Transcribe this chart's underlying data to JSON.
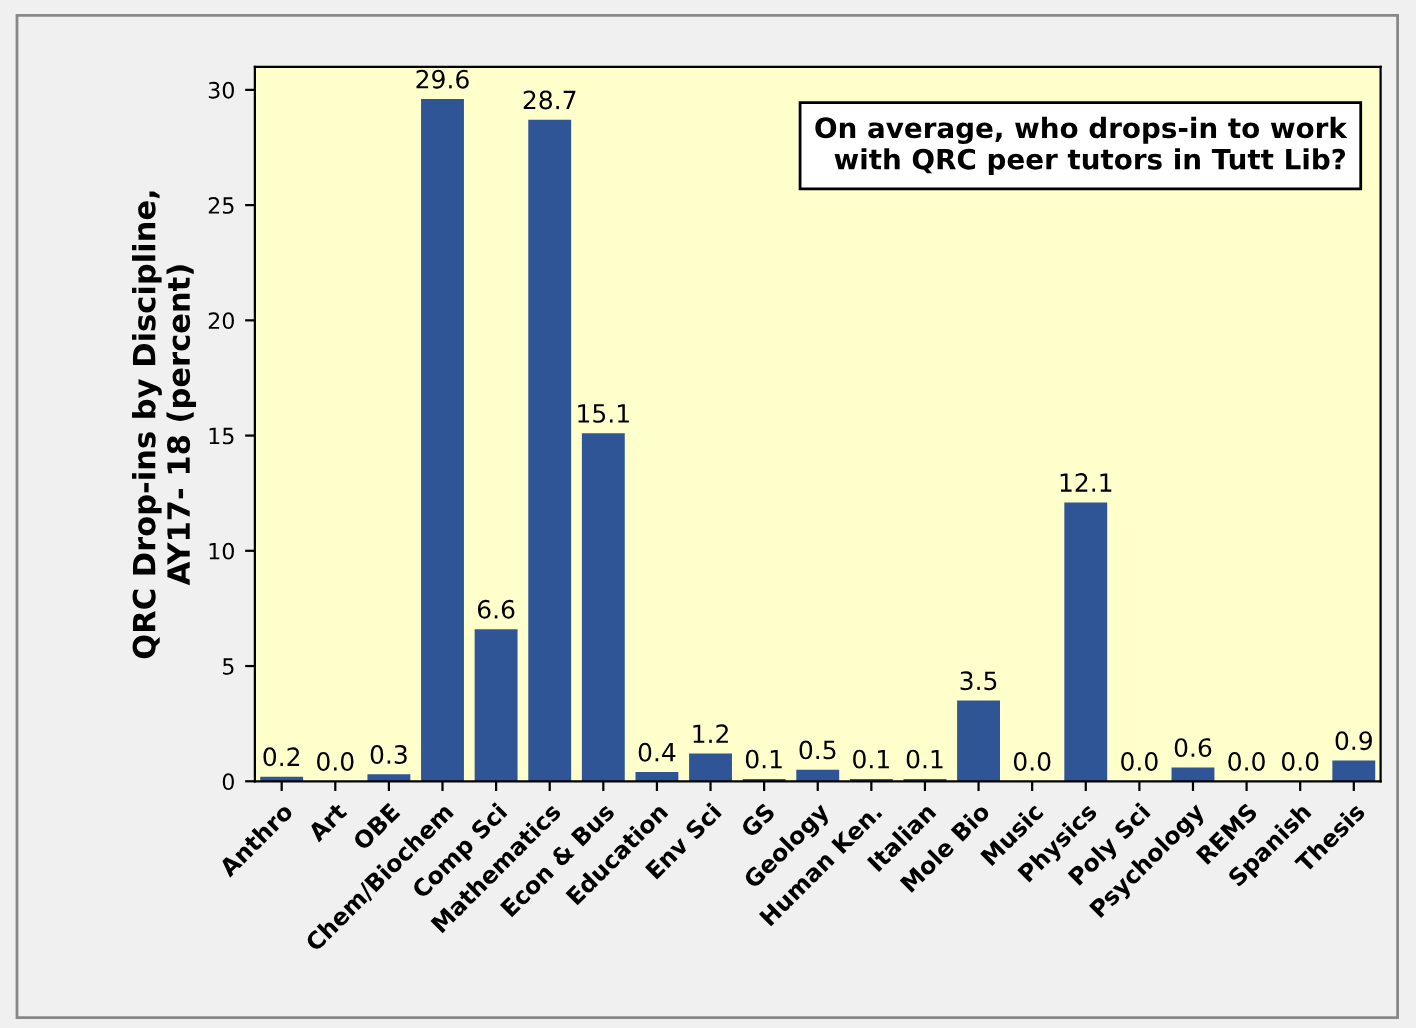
{
  "chart_data": {
    "type": "bar",
    "ylabel": "QRC Drop-ins by Discipline,\nAY17- 18 (percent)",
    "categories": [
      "Anthro",
      "Art",
      "OBE",
      "Chem/Biochem",
      "Comp Sci",
      "Mathematics",
      "Econ & Bus",
      "Education",
      "Env Sci",
      "GS",
      "Geology",
      "Human Ken.",
      "Italian",
      "Mole Bio",
      "Music",
      "Physics",
      "Poly Sci",
      "Psychology",
      "REMS",
      "Spanish",
      "Thesis"
    ],
    "values": [
      0.2,
      0.0,
      0.3,
      29.6,
      6.6,
      28.7,
      15.1,
      0.4,
      1.2,
      0.1,
      0.5,
      0.1,
      0.1,
      3.5,
      0.0,
      12.1,
      0.0,
      0.6,
      0.0,
      0.0,
      0.9
    ],
    "value_labels": [
      "0.2",
      "0.0",
      "0.3",
      "29.6",
      "6.6",
      "28.7",
      "15.1",
      "0.4",
      "1.2",
      "0.1",
      "0.5",
      "0.1",
      "0.1",
      "3.5",
      "0.0",
      "12.1",
      "0.0",
      "0.6",
      "0.0",
      "0.0",
      "0.9"
    ],
    "color": "#2f5597",
    "ylim": [
      0,
      31
    ],
    "yticks": [
      0,
      5,
      10,
      15,
      20,
      25,
      30
    ],
    "grid": false,
    "legend": false,
    "annotations": [
      "On average, who drops-in to work\nwith QRC peer tutors in Tutt Lib?"
    ]
  }
}
